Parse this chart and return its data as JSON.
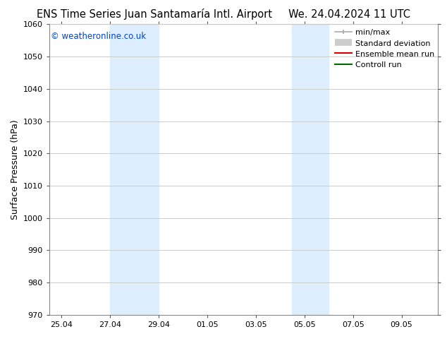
{
  "title_left": "ENS Time Series Juan Santamaría Intl. Airport",
  "title_right": "We. 24.04.2024 11 UTC",
  "ylabel": "Surface Pressure (hPa)",
  "ylim": [
    970,
    1060
  ],
  "yticks": [
    970,
    980,
    990,
    1000,
    1010,
    1020,
    1030,
    1040,
    1050,
    1060
  ],
  "xtick_labels": [
    "25.04",
    "27.04",
    "29.04",
    "01.05",
    "03.05",
    "05.05",
    "07.05",
    "09.05"
  ],
  "xtick_positions": [
    0,
    2,
    4,
    6,
    8,
    10,
    12,
    14
  ],
  "xlim_left": -0.5,
  "xlim_right": 15.5,
  "shaded_bands": [
    {
      "x_start": 2.0,
      "x_end": 4.0,
      "color": "#ddeeff"
    },
    {
      "x_start": 9.5,
      "x_end": 11.0,
      "color": "#ddeeff"
    }
  ],
  "watermark_text": "© weatheronline.co.uk",
  "watermark_color": "#0044cc",
  "background_color": "#ffffff",
  "plot_bg_color": "#ffffff",
  "grid_color": "#cccccc",
  "legend_items": [
    {
      "label": "min/max",
      "color": "#aaaaaa",
      "lw": 1.2,
      "ls": "-",
      "type": "minmax"
    },
    {
      "label": "Standard deviation",
      "color": "#cccccc",
      "lw": 7,
      "ls": "-",
      "type": "band"
    },
    {
      "label": "Ensemble mean run",
      "color": "#dd0000",
      "lw": 1.5,
      "ls": "-",
      "type": "line"
    },
    {
      "label": "Controll run",
      "color": "#006600",
      "lw": 1.5,
      "ls": "-",
      "type": "line"
    }
  ],
  "title_fontsize": 10.5,
  "ylabel_fontsize": 9,
  "tick_fontsize": 8,
  "legend_fontsize": 8,
  "watermark_fontsize": 8.5
}
